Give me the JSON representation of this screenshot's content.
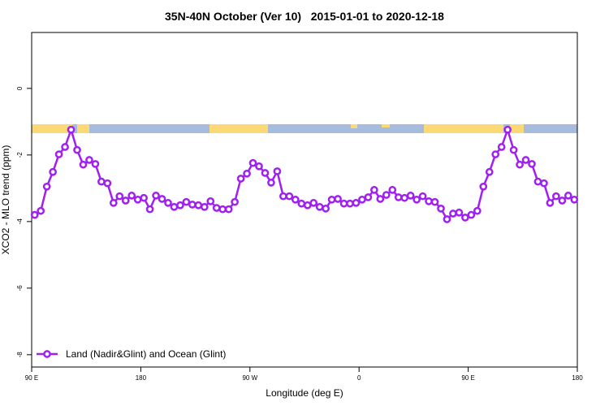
{
  "chart_data": {
    "type": "line",
    "title": "35N-40N October (Ver 10)   2015-01-01 to 2020-12-18",
    "xlabel": "Longitude (deg E)",
    "ylabel": "XCO2 - MLO trend (ppm)",
    "x": [
      92.5,
      97.5,
      102.5,
      107.5,
      112.5,
      117.5,
      122.5,
      127.5,
      132.5,
      137.5,
      142.5,
      147.5,
      152.5,
      157.5,
      162.5,
      167.5,
      172.5,
      177.5,
      182.5,
      187.5,
      192.5,
      197.5,
      202.5,
      207.5,
      212.5,
      217.5,
      222.5,
      227.5,
      232.5,
      237.5,
      242.5,
      247.5,
      252.5,
      257.5,
      262.5,
      267.5,
      272.5,
      277.5,
      282.5,
      287.5,
      292.5,
      297.5,
      302.5,
      307.5,
      312.5,
      317.5,
      322.5,
      327.5,
      332.5,
      337.5,
      342.5,
      347.5,
      352.5,
      357.5,
      362.5,
      367.5,
      372.5,
      377.5,
      382.5,
      387.5,
      392.5,
      397.5,
      402.5,
      407.5,
      412.5,
      417.5,
      422.5,
      427.5,
      432.5,
      437.5,
      442.5,
      447.5,
      452.5,
      457.5,
      462.5,
      467.5,
      472.5,
      477.5,
      482.5,
      487.5,
      492.5,
      497.5,
      502.5,
      507.5,
      512.5,
      517.5,
      522.5,
      527.5,
      532.5,
      537.5
    ],
    "series": [
      {
        "name": "Land (Nadir&Glint) and Ocean (Glint)",
        "color": "#a020f0",
        "values": [
          -3.8,
          -3.68,
          -2.95,
          -2.51,
          -1.98,
          -1.76,
          -1.24,
          -1.85,
          -2.29,
          -2.15,
          -2.27,
          -2.8,
          -2.85,
          -3.44,
          -3.24,
          -3.37,
          -3.22,
          -3.34,
          -3.29,
          -3.63,
          -3.22,
          -3.32,
          -3.44,
          -3.56,
          -3.51,
          -3.41,
          -3.49,
          -3.51,
          -3.56,
          -3.39,
          -3.59,
          -3.63,
          -3.63,
          -3.41,
          -2.71,
          -2.56,
          -2.24,
          -2.34,
          -2.54,
          -2.83,
          -2.49,
          -3.24,
          -3.24,
          -3.34,
          -3.46,
          -3.51,
          -3.44,
          -3.56,
          -3.61,
          -3.34,
          -3.32,
          -3.46,
          -3.46,
          -3.44,
          -3.34,
          -3.27,
          -3.05,
          -3.32,
          -3.2,
          -3.05,
          -3.27,
          -3.29,
          -3.22,
          -3.34,
          -3.24,
          -3.39,
          -3.41,
          -3.61,
          -3.93,
          -3.76,
          -3.73,
          -3.88,
          -3.8,
          -3.68,
          -2.95,
          -2.51,
          -1.98,
          -1.76,
          -1.24,
          -1.85,
          -2.29,
          -2.15,
          -2.27,
          -2.8,
          -2.85,
          -3.44,
          -3.24,
          -3.37,
          -3.22,
          -3.34
        ]
      }
    ],
    "xlim": [
      90,
      540
    ],
    "ylim": [
      1.68,
      -8.37
    ],
    "xticks": [
      {
        "value": 90,
        "label": "90 E"
      },
      180,
      {
        "value": 270,
        "label": "90 W"
      },
      {
        "value": 360,
        "label": "0"
      },
      {
        "value": 450,
        "label": "90 E"
      },
      {
        "value": 540,
        "label": "180"
      }
    ],
    "yticks": [
      0,
      -2,
      -4,
      -6,
      -8
    ],
    "legend": "bottom-left"
  }
}
